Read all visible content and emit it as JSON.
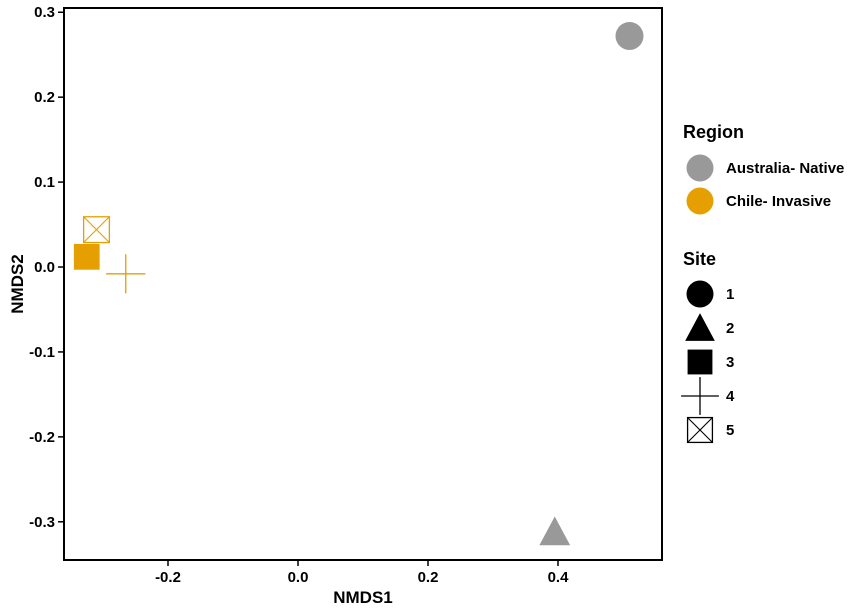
{
  "chart_data": {
    "type": "scatter",
    "title": "",
    "xlabel": "NMDS1",
    "ylabel": "NMDS2",
    "xlim": [
      -0.36,
      0.56
    ],
    "ylim": [
      -0.345,
      0.305
    ],
    "x_ticks": [
      -0.2,
      0.0,
      0.2,
      0.4
    ],
    "x_tick_labels": [
      "-0.2",
      "0.0",
      "0.2",
      "0.4"
    ],
    "y_ticks": [
      0.3,
      0.2,
      0.1,
      0.0,
      -0.1,
      -0.2,
      -0.3
    ],
    "y_tick_labels": [
      "0.3",
      "0.2",
      "0.1",
      "0.0",
      "-0.1",
      "-0.2",
      "-0.3"
    ],
    "grid": false,
    "legend_position": "right",
    "points": [
      {
        "x": 0.51,
        "y": 0.272,
        "region": "Australia- Native",
        "site": "1"
      },
      {
        "x": 0.395,
        "y": -0.312,
        "region": "Australia- Native",
        "site": "2"
      },
      {
        "x": -0.325,
        "y": 0.012,
        "region": "Chile- Invasive",
        "site": "3"
      },
      {
        "x": -0.265,
        "y": -0.008,
        "region": "Chile- Invasive",
        "site": "4"
      },
      {
        "x": -0.31,
        "y": 0.044,
        "region": "Chile- Invasive",
        "site": "5"
      }
    ],
    "legend": {
      "region_title": "Region",
      "regions": [
        {
          "label": "Australia- Native",
          "color": "#999999"
        },
        {
          "label": "Chile- Invasive",
          "color": "#E69F00"
        }
      ],
      "site_title": "Site",
      "sites": [
        {
          "label": "1",
          "shape": "circle"
        },
        {
          "label": "2",
          "shape": "triangle"
        },
        {
          "label": "3",
          "shape": "square"
        },
        {
          "label": "4",
          "shape": "plus"
        },
        {
          "label": "5",
          "shape": "square-x"
        }
      ]
    }
  }
}
